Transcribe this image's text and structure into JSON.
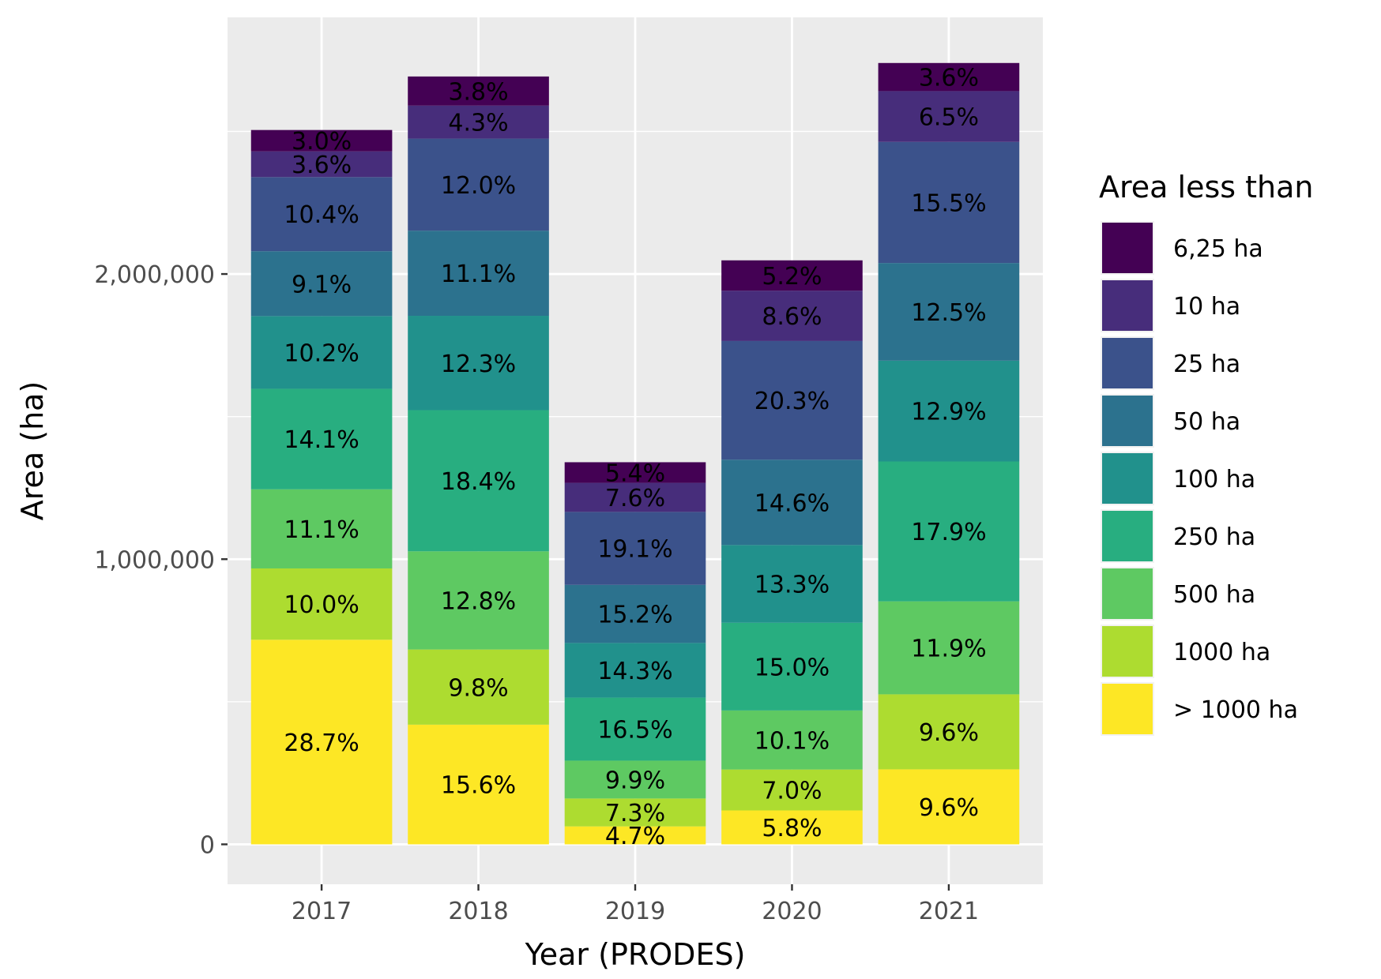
{
  "chart_data": {
    "type": "bar",
    "stacked": true,
    "xlabel": "Year (PRODES)",
    "ylabel": "Area (ha)",
    "ylim": [
      -140000,
      2900000
    ],
    "yticks": [
      0,
      1000000,
      2000000
    ],
    "ytick_labels": [
      "0",
      "1,000,000",
      "2,000,000"
    ],
    "categories": [
      "2017",
      "2018",
      "2019",
      "2020",
      "2021"
    ],
    "totals": [
      2500000,
      2690000,
      1340000,
      2050000,
      2740000
    ],
    "legend": {
      "title": "Area less than",
      "position": "right"
    },
    "grid": true,
    "panel_background": "#ebebeb",
    "series": [
      {
        "name": "> 1000 ha",
        "color": "#fde725",
        "percents": [
          28.7,
          15.6,
          4.7,
          5.8,
          9.6
        ],
        "labels": [
          "28.7%",
          "15.6%",
          "4.7%",
          "5.8%",
          "9.6%"
        ]
      },
      {
        "name": "1000 ha",
        "color": "#addc30",
        "percents": [
          10.0,
          9.8,
          7.3,
          7.0,
          9.6
        ],
        "labels": [
          "10.0%",
          "9.8%",
          "7.3%",
          "7.0%",
          "9.6%"
        ]
      },
      {
        "name": "500 ha",
        "color": "#5ec962",
        "percents": [
          11.1,
          12.8,
          9.9,
          10.1,
          11.9
        ],
        "labels": [
          "11.1%",
          "12.8%",
          "9.9%",
          "10.1%",
          "11.9%"
        ]
      },
      {
        "name": "250 ha",
        "color": "#28ae80",
        "percents": [
          14.1,
          18.4,
          16.5,
          15.0,
          17.9
        ],
        "labels": [
          "14.1%",
          "18.4%",
          "16.5%",
          "15.0%",
          "17.9%"
        ]
      },
      {
        "name": "100 ha",
        "color": "#21918c",
        "percents": [
          10.2,
          12.3,
          14.3,
          13.3,
          12.9
        ],
        "labels": [
          "10.2%",
          "12.3%",
          "14.3%",
          "13.3%",
          "12.9%"
        ]
      },
      {
        "name": "50 ha",
        "color": "#2c728e",
        "percents": [
          9.1,
          11.1,
          15.2,
          14.6,
          12.5
        ],
        "labels": [
          "9.1%",
          "11.1%",
          "15.2%",
          "14.6%",
          "12.5%"
        ]
      },
      {
        "name": "25 ha",
        "color": "#3b528b",
        "percents": [
          10.4,
          12.0,
          19.1,
          20.3,
          15.5
        ],
        "labels": [
          "10.4%",
          "12.0%",
          "19.1%",
          "20.3%",
          "15.5%"
        ]
      },
      {
        "name": "10 ha",
        "color": "#472d7b",
        "percents": [
          3.6,
          4.3,
          7.6,
          8.6,
          6.5
        ],
        "labels": [
          "3.6%",
          "4.3%",
          "7.6%",
          "8.6%",
          "6.5%"
        ]
      },
      {
        "name": "6,25 ha",
        "color": "#440154",
        "percents": [
          3.0,
          3.8,
          5.4,
          5.2,
          3.6
        ],
        "labels": [
          "3.0%",
          "3.8%",
          "5.4%",
          "5.2%",
          "3.6%"
        ]
      }
    ]
  }
}
